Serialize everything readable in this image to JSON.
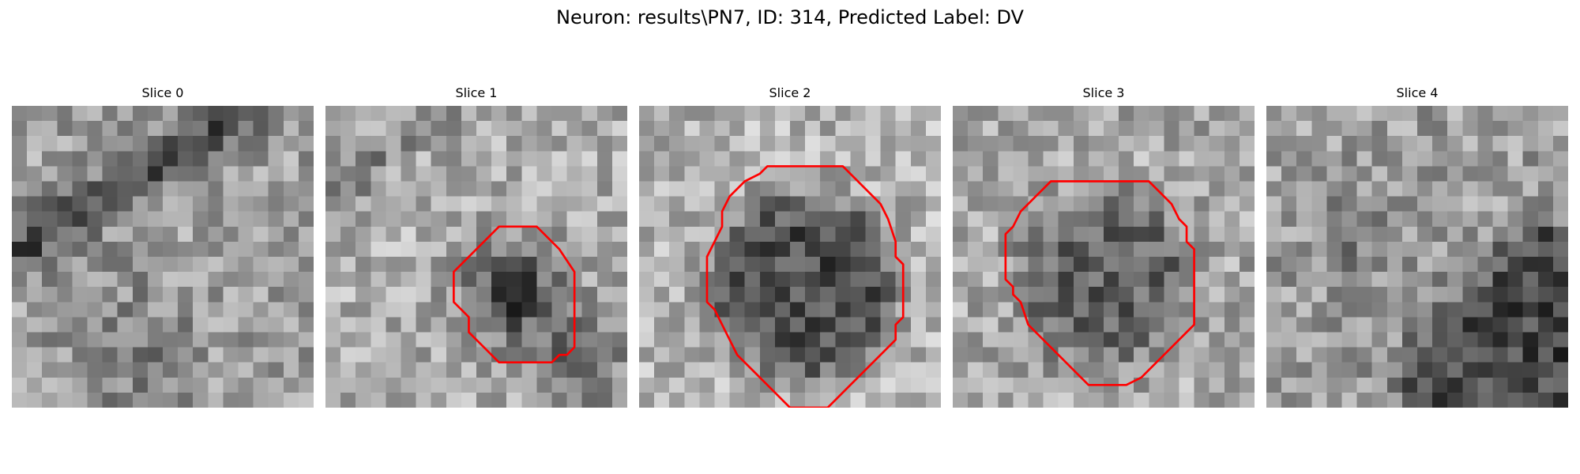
{
  "figure": {
    "title": "Neuron: results\\PN7, ID: 314, Predicted Label: DV"
  },
  "colors": {
    "contour": "#ff0000",
    "background": "#ffffff"
  },
  "panels": [
    {
      "title": "Slice 0",
      "seed": 11,
      "pattern": "diagonal-band",
      "contour": []
    },
    {
      "title": "Slice 1",
      "seed": 23,
      "pattern": "blob-small",
      "contour": [
        [
          14.0,
          8.0
        ],
        [
          15.5,
          9.5
        ],
        [
          16.5,
          11.0
        ],
        [
          16.5,
          16.0
        ],
        [
          16.0,
          16.5
        ],
        [
          15.5,
          16.5
        ],
        [
          15.0,
          17.0
        ],
        [
          14.0,
          17.0
        ],
        [
          13.5,
          17.0
        ],
        [
          11.5,
          17.0
        ],
        [
          10.5,
          16.0
        ],
        [
          10.0,
          15.5
        ],
        [
          9.5,
          15.0
        ],
        [
          9.5,
          14.0
        ],
        [
          9.0,
          13.5
        ],
        [
          8.5,
          13.0
        ],
        [
          8.5,
          11.0
        ],
        [
          10.5,
          9.0
        ],
        [
          11.5,
          8.0
        ]
      ]
    },
    {
      "title": "Slice 2",
      "seed": 37,
      "pattern": "blob-large",
      "contour": [
        [
          10.5,
          4.0
        ],
        [
          13.5,
          4.0
        ],
        [
          14.0,
          4.5
        ],
        [
          15.0,
          5.5
        ],
        [
          16.0,
          6.5
        ],
        [
          16.5,
          7.5
        ],
        [
          17.0,
          9.0
        ],
        [
          17.0,
          10.0
        ],
        [
          17.5,
          10.5
        ],
        [
          17.5,
          14.0
        ],
        [
          17.0,
          14.5
        ],
        [
          17.0,
          15.5
        ],
        [
          16.0,
          16.5
        ],
        [
          14.5,
          18.0
        ],
        [
          14.0,
          18.5
        ],
        [
          12.5,
          20.0
        ],
        [
          10.0,
          20.0
        ],
        [
          9.5,
          19.5
        ],
        [
          8.5,
          18.5
        ],
        [
          7.5,
          17.5
        ],
        [
          6.5,
          16.5
        ],
        [
          6.0,
          15.5
        ],
        [
          5.5,
          14.5
        ],
        [
          5.0,
          13.5
        ],
        [
          4.5,
          13.0
        ],
        [
          4.5,
          10.0
        ],
        [
          5.0,
          9.0
        ],
        [
          5.5,
          8.0
        ],
        [
          5.5,
          7.0
        ],
        [
          6.0,
          6.0
        ],
        [
          6.5,
          5.5
        ],
        [
          7.0,
          5.0
        ],
        [
          8.0,
          4.5
        ],
        [
          8.5,
          4.0
        ]
      ]
    },
    {
      "title": "Slice 3",
      "seed": 53,
      "pattern": "blob-medium",
      "contour": [
        [
          6.5,
          5.0
        ],
        [
          13.0,
          5.0
        ],
        [
          14.0,
          6.0
        ],
        [
          14.5,
          6.5
        ],
        [
          15.0,
          7.5
        ],
        [
          15.5,
          8.0
        ],
        [
          15.5,
          9.0
        ],
        [
          16.0,
          9.5
        ],
        [
          16.0,
          14.5
        ],
        [
          15.5,
          15.0
        ],
        [
          14.0,
          16.5
        ],
        [
          13.5,
          17.0
        ],
        [
          12.5,
          18.0
        ],
        [
          11.5,
          18.5
        ],
        [
          9.0,
          18.5
        ],
        [
          8.5,
          18.0
        ],
        [
          7.5,
          17.0
        ],
        [
          6.5,
          16.0
        ],
        [
          5.0,
          14.5
        ],
        [
          4.5,
          13.0
        ],
        [
          4.0,
          12.5
        ],
        [
          4.0,
          12.0
        ],
        [
          3.5,
          11.5
        ],
        [
          3.5,
          8.5
        ],
        [
          4.0,
          8.0
        ],
        [
          4.5,
          7.0
        ],
        [
          5.5,
          6.0
        ],
        [
          6.0,
          5.5
        ]
      ]
    },
    {
      "title": "Slice 4",
      "seed": 71,
      "pattern": "corner-dark",
      "contour": []
    }
  ]
}
